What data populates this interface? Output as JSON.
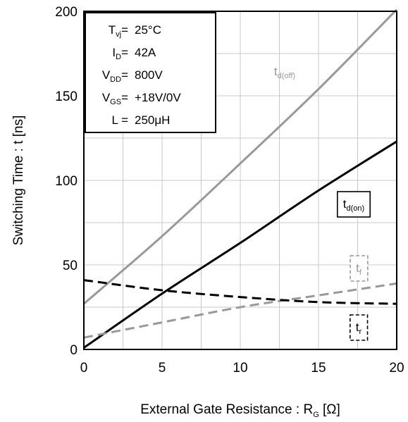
{
  "chart_data": {
    "type": "line",
    "xlabel_main": "External Gate Resistance : R",
    "xlabel_sub": "G",
    "xlabel_unit": " [Ω]",
    "ylabel": "Switching Time : t [ns]",
    "xlim": [
      0,
      20
    ],
    "ylim": [
      0,
      200
    ],
    "xticks": [
      0,
      5,
      10,
      15,
      20
    ],
    "yticks": [
      0,
      50,
      100,
      150,
      200
    ],
    "grid": true,
    "conditions": [
      {
        "sym": "T",
        "sub": "vj",
        "eq": "=",
        "val": "25°C"
      },
      {
        "sym": "I",
        "sub": "D",
        "eq": "=",
        "val": "42A"
      },
      {
        "sym": "V",
        "sub": "DD",
        "eq": "=",
        "val": "800V"
      },
      {
        "sym": "V",
        "sub": "GS",
        "eq": "=",
        "val": "+18V/0V"
      },
      {
        "sym": "L",
        "sub": "",
        "eq": "=",
        "val": "250μH"
      }
    ],
    "series": [
      {
        "name_main": "t",
        "name_sub": "d(off)",
        "color": "#999999",
        "dash": "solid",
        "boxed": false,
        "x": [
          0,
          5,
          10,
          15,
          20
        ],
        "y": [
          27,
          67,
          110,
          154,
          201
        ]
      },
      {
        "name_main": "t",
        "name_sub": "d(on)",
        "color": "#000000",
        "dash": "solid",
        "boxed": true,
        "box_style": "solid",
        "x": [
          0,
          5,
          10,
          15,
          20
        ],
        "y": [
          1,
          33,
          63,
          94,
          123
        ]
      },
      {
        "name_main": "t",
        "name_sub": "f",
        "color": "#999999",
        "dash": "dashed",
        "boxed": true,
        "box_style": "dashed",
        "x": [
          0,
          5,
          10,
          15,
          20
        ],
        "y": [
          7,
          16,
          25,
          32,
          39
        ]
      },
      {
        "name_main": "t",
        "name_sub": "r",
        "color": "#000000",
        "dash": "dashed",
        "boxed": true,
        "box_style": "dashed",
        "x": [
          0,
          5,
          10,
          15,
          20
        ],
        "y": [
          41,
          35,
          31,
          28,
          27
        ]
      }
    ]
  }
}
